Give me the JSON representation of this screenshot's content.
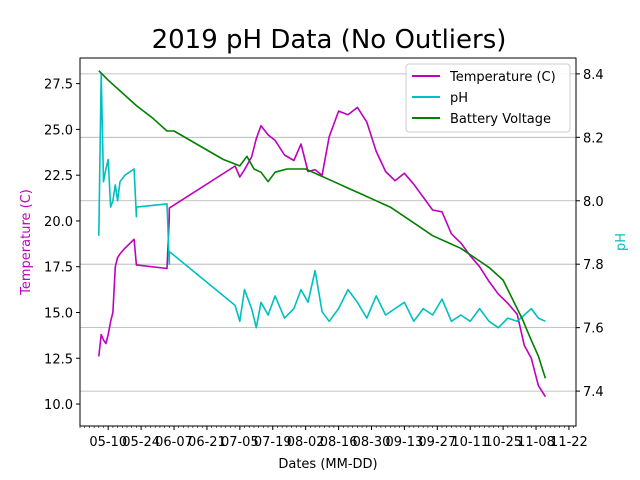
{
  "chart_data": {
    "type": "line",
    "title": "2019 pH Data (No Outliers)",
    "xlabel": "Dates (MM-DD)",
    "ylabel_left": "Temperature (C)",
    "ylabel_right": "pH",
    "xlim": [
      "2019-04-28",
      "2019-11-25"
    ],
    "ylim_left": [
      8.8,
      28.9
    ],
    "ylim_right": [
      7.29,
      8.45
    ],
    "x_tick_labels": [
      "05-10",
      "05-24",
      "06-07",
      "06-21",
      "07-05",
      "07-19",
      "08-02",
      "08-16",
      "08-30",
      "09-13",
      "09-27",
      "10-11",
      "10-25",
      "11-08",
      "11-22"
    ],
    "x_tick_dates": [
      "2019-05-10",
      "2019-05-24",
      "2019-06-07",
      "2019-06-21",
      "2019-07-05",
      "2019-07-19",
      "2019-08-02",
      "2019-08-16",
      "2019-08-30",
      "2019-09-13",
      "2019-09-27",
      "2019-10-11",
      "2019-10-25",
      "2019-11-08",
      "2019-11-22"
    ],
    "y_left_ticks": [
      "10.0",
      "12.5",
      "15.0",
      "17.5",
      "20.0",
      "22.5",
      "25.0",
      "27.5"
    ],
    "y_right_ticks": [
      "7.4",
      "7.6",
      "7.8",
      "8.0",
      "8.2",
      "8.4"
    ],
    "grid": "horizontal, right axis",
    "legend": {
      "placement": "top-right",
      "entries": [
        "Temperature (C)",
        "pH",
        "Battery Voltage"
      ]
    },
    "series": [
      {
        "name": "Temperature (C)",
        "axis": "left",
        "color": "#bf00bf",
        "x": [
          "2019-05-06",
          "2019-05-07",
          "2019-05-08",
          "2019-05-09",
          "2019-05-10",
          "2019-05-11",
          "2019-05-12",
          "2019-05-13",
          "2019-05-14",
          "2019-05-15",
          "2019-05-17",
          "2019-05-21",
          "2019-05-22",
          "2019-05-22",
          "2019-06-04",
          "2019-06-05",
          "2019-06-05",
          "2019-07-03",
          "2019-07-05",
          "2019-07-07",
          "2019-07-10",
          "2019-07-12",
          "2019-07-14",
          "2019-07-17",
          "2019-07-20",
          "2019-07-24",
          "2019-07-28",
          "2019-07-31",
          "2019-08-03",
          "2019-08-06",
          "2019-08-09",
          "2019-08-12",
          "2019-08-16",
          "2019-08-20",
          "2019-08-24",
          "2019-08-28",
          "2019-09-01",
          "2019-09-05",
          "2019-09-09",
          "2019-09-13",
          "2019-09-17",
          "2019-09-21",
          "2019-09-25",
          "2019-09-29",
          "2019-10-03",
          "2019-10-07",
          "2019-10-11",
          "2019-10-15",
          "2019-10-19",
          "2019-10-23",
          "2019-10-27",
          "2019-10-31",
          "2019-11-03",
          "2019-11-06",
          "2019-11-09",
          "2019-11-12"
        ],
        "y": [
          12.6,
          13.8,
          13.5,
          13.3,
          13.8,
          14.5,
          15.0,
          17.5,
          18.0,
          18.2,
          18.5,
          19.0,
          17.6,
          17.6,
          17.4,
          20.2,
          20.7,
          23.0,
          22.4,
          22.8,
          23.5,
          24.5,
          25.2,
          24.7,
          24.4,
          23.6,
          23.3,
          24.2,
          22.7,
          22.8,
          22.5,
          24.6,
          26.0,
          25.8,
          26.2,
          25.4,
          23.8,
          22.7,
          22.2,
          22.6,
          22.0,
          21.3,
          20.6,
          20.5,
          19.3,
          18.8,
          18.1,
          17.5,
          16.7,
          16.0,
          15.5,
          14.9,
          13.2,
          12.5,
          11.0,
          10.4
        ]
      },
      {
        "name": "pH",
        "axis": "right",
        "color": "#00bfbf",
        "x": [
          "2019-05-06",
          "2019-05-07",
          "2019-05-08",
          "2019-05-09",
          "2019-05-10",
          "2019-05-11",
          "2019-05-12",
          "2019-05-13",
          "2019-05-14",
          "2019-05-15",
          "2019-05-17",
          "2019-05-21",
          "2019-05-22",
          "2019-05-22",
          "2019-06-04",
          "2019-06-05",
          "2019-06-05",
          "2019-07-03",
          "2019-07-05",
          "2019-07-07",
          "2019-07-10",
          "2019-07-12",
          "2019-07-14",
          "2019-07-17",
          "2019-07-20",
          "2019-07-24",
          "2019-07-28",
          "2019-07-31",
          "2019-08-03",
          "2019-08-06",
          "2019-08-09",
          "2019-08-12",
          "2019-08-16",
          "2019-08-20",
          "2019-08-24",
          "2019-08-28",
          "2019-09-01",
          "2019-09-05",
          "2019-09-09",
          "2019-09-13",
          "2019-09-17",
          "2019-09-21",
          "2019-09-25",
          "2019-09-29",
          "2019-10-03",
          "2019-10-07",
          "2019-10-11",
          "2019-10-15",
          "2019-10-19",
          "2019-10-23",
          "2019-10-27",
          "2019-10-31",
          "2019-11-03",
          "2019-11-06",
          "2019-11-09",
          "2019-11-12"
        ],
        "y": [
          7.89,
          8.4,
          8.06,
          8.1,
          8.13,
          7.98,
          8.0,
          8.05,
          8.0,
          8.06,
          8.08,
          8.1,
          7.95,
          7.98,
          7.99,
          7.8,
          7.84,
          7.67,
          7.62,
          7.72,
          7.66,
          7.6,
          7.68,
          7.64,
          7.7,
          7.63,
          7.66,
          7.72,
          7.68,
          7.78,
          7.65,
          7.62,
          7.66,
          7.72,
          7.68,
          7.63,
          7.7,
          7.64,
          7.66,
          7.68,
          7.62,
          7.66,
          7.64,
          7.69,
          7.62,
          7.64,
          7.62,
          7.66,
          7.62,
          7.6,
          7.63,
          7.62,
          7.64,
          7.66,
          7.63,
          7.62
        ]
      },
      {
        "name": "Battery Voltage",
        "axis": "right",
        "color": "#008000",
        "x": [
          "2019-05-06",
          "2019-05-10",
          "2019-05-16",
          "2019-05-22",
          "2019-05-29",
          "2019-06-04",
          "2019-06-07",
          "2019-06-14",
          "2019-06-21",
          "2019-06-28",
          "2019-07-05",
          "2019-07-08",
          "2019-07-11",
          "2019-07-14",
          "2019-07-17",
          "2019-07-20",
          "2019-07-25",
          "2019-08-02",
          "2019-08-08",
          "2019-08-14",
          "2019-08-20",
          "2019-08-26",
          "2019-09-01",
          "2019-09-07",
          "2019-09-13",
          "2019-09-19",
          "2019-09-25",
          "2019-10-01",
          "2019-10-07",
          "2019-10-13",
          "2019-10-19",
          "2019-10-25",
          "2019-10-29",
          "2019-11-02",
          "2019-11-06",
          "2019-11-09",
          "2019-11-12"
        ],
        "y": [
          8.41,
          8.38,
          8.34,
          8.3,
          8.26,
          8.22,
          8.22,
          8.19,
          8.16,
          8.13,
          8.11,
          8.14,
          8.1,
          8.09,
          8.06,
          8.09,
          8.1,
          8.1,
          8.08,
          8.06,
          8.04,
          8.02,
          8.0,
          7.98,
          7.95,
          7.92,
          7.89,
          7.87,
          7.85,
          7.82,
          7.79,
          7.75,
          7.69,
          7.63,
          7.56,
          7.51,
          7.44
        ]
      }
    ]
  }
}
